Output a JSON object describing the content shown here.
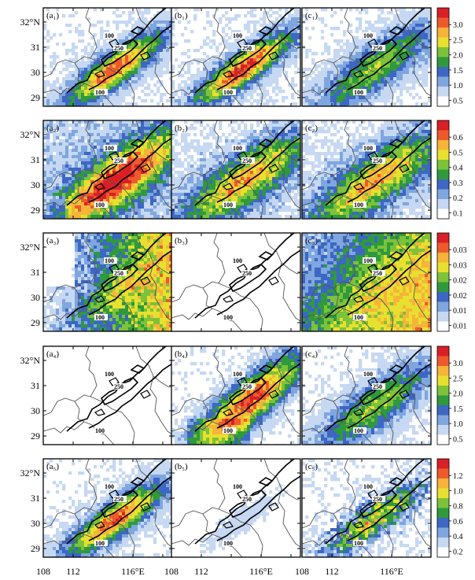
{
  "figure": {
    "x_tick_labels": [
      "108",
      "112",
      "116°E"
    ],
    "y_tick_labels": [
      "32°N",
      "31",
      "30",
      "29"
    ],
    "contour_labels": [
      "100",
      "250"
    ],
    "colors": {
      "ramp": [
        "#ffffff",
        "#c6d8f2",
        "#7fa6df",
        "#3c67c3",
        "#2f9a3c",
        "#7cc23a",
        "#e8e02e",
        "#f6b43a",
        "#ee5a2c",
        "#d92026"
      ],
      "contour": "#000000",
      "border": "#555555"
    },
    "rows": [
      {
        "panels": [
          {
            "label": "(a₁)",
            "field": "moderate-se"
          },
          {
            "label": "(b₁)",
            "field": "core"
          },
          {
            "label": "(c₁)",
            "field": "blue-band"
          }
        ],
        "colorbar": {
          "ticks": [
            "3.0",
            "2.5",
            "2.0",
            "1.5",
            "1.0",
            "0.5"
          ]
        }
      },
      {
        "panels": [
          {
            "label": "(a₂)",
            "field": "wide"
          },
          {
            "label": "(b₂)",
            "field": "wide-moderate"
          },
          {
            "label": "(c₂)",
            "field": "wide-moderate"
          }
        ],
        "colorbar": {
          "ticks": [
            "0.6",
            "0.5",
            "0.4",
            "0.3",
            "0.2",
            "0.1"
          ]
        }
      },
      {
        "panels": [
          {
            "label": "(a₃)",
            "field": "east-heavy"
          },
          {
            "label": "(b₃)",
            "field": "empty"
          },
          {
            "label": "(c₃)",
            "field": "full"
          }
        ],
        "colorbar": {
          "ticks": [
            "0.03",
            "0.03",
            "0.02",
            "0.02",
            "0.01",
            "0.01"
          ]
        }
      },
      {
        "panels": [
          {
            "label": "(a₄)",
            "field": "empty"
          },
          {
            "label": "(b₄)",
            "field": "strong-band"
          },
          {
            "label": "(c₄)",
            "field": "blue-band"
          }
        ],
        "colorbar": {
          "ticks": [
            "3.0",
            "2.5",
            "2.0",
            "1.5",
            "1.0",
            "0.5"
          ]
        }
      },
      {
        "panels": [
          {
            "label": "(a₅)",
            "field": "moderate-se"
          },
          {
            "label": "(b₅)",
            "field": "sparse"
          },
          {
            "label": "(c₅)",
            "field": "patchy"
          }
        ],
        "colorbar": {
          "ticks": [
            "1.2",
            "1.0",
            "0.8",
            "0.6",
            "0.4",
            "0.2"
          ]
        }
      }
    ]
  }
}
